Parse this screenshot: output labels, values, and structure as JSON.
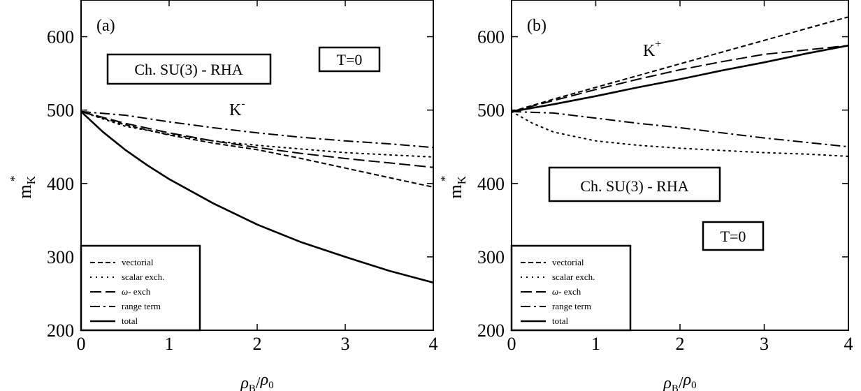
{
  "chart_data": [
    {
      "type": "line",
      "panel_label": "(a)",
      "xlabel": "ρB/ρ0",
      "ylabel": "m*K",
      "xlim": [
        0,
        4
      ],
      "ylim": [
        200,
        650
      ],
      "xticks": [
        0,
        1,
        2,
        3,
        4
      ],
      "yticks": [
        200,
        300,
        400,
        500,
        600
      ],
      "annotations": [
        "Ch. SU(3) - RHA",
        "T=0",
        "K-"
      ],
      "legend": {
        "placement": "bottom-left",
        "entries": [
          "vectorial",
          "scalar exch.",
          "ω- exch",
          "range term",
          "total"
        ]
      },
      "series": [
        {
          "name": "vectorial",
          "style": "short-dash",
          "x": [
            0,
            0.5,
            1,
            1.5,
            2,
            2.5,
            3,
            3.5,
            4
          ],
          "y": [
            498,
            480,
            466,
            455,
            446,
            434,
            421,
            408,
            395
          ]
        },
        {
          "name": "scalar exch.",
          "style": "dotted",
          "x": [
            0,
            0.5,
            1,
            1.5,
            2,
            2.5,
            3,
            3.5,
            4
          ],
          "y": [
            498,
            478,
            467,
            458,
            452,
            447,
            442,
            439,
            436
          ]
        },
        {
          "name": "ω- exch",
          "style": "long-dash",
          "x": [
            0,
            0.5,
            1,
            1.5,
            2,
            2.5,
            3,
            3.5,
            4
          ],
          "y": [
            498,
            482,
            469,
            458,
            449,
            441,
            434,
            428,
            422
          ]
        },
        {
          "name": "range term",
          "style": "dash-dot",
          "x": [
            0,
            0.5,
            1,
            1.5,
            2,
            2.5,
            3,
            3.5,
            4
          ],
          "y": [
            498,
            493,
            484,
            476,
            469,
            463,
            458,
            454,
            449
          ]
        },
        {
          "name": "total",
          "style": "solid",
          "x": [
            0,
            0.25,
            0.5,
            0.75,
            1,
            1.5,
            2,
            2.5,
            3,
            3.5,
            4
          ],
          "y": [
            498,
            470,
            446,
            425,
            406,
            373,
            344,
            320,
            300,
            281,
            265
          ]
        }
      ]
    },
    {
      "type": "line",
      "panel_label": "(b)",
      "xlabel": "ρB/ρ0",
      "ylabel": "m*K",
      "xlim": [
        0,
        4
      ],
      "ylim": [
        200,
        650
      ],
      "xticks": [
        0,
        1,
        2,
        3,
        4
      ],
      "yticks": [
        200,
        300,
        400,
        500,
        600
      ],
      "annotations": [
        "Ch. SU(3) - RHA",
        "T=0",
        "K+"
      ],
      "legend": {
        "placement": "bottom-left",
        "entries": [
          "vectorial",
          "scalar exch.",
          "ω- exch",
          "range term",
          "total"
        ]
      },
      "series": [
        {
          "name": "vectorial",
          "style": "short-dash",
          "x": [
            0,
            0.5,
            1,
            1.5,
            2,
            2.5,
            3,
            3.5,
            4
          ],
          "y": [
            498,
            515,
            531,
            547,
            563,
            579,
            595,
            611,
            627
          ]
        },
        {
          "name": "scalar exch.",
          "style": "dotted",
          "x": [
            0,
            0.25,
            0.5,
            1,
            1.5,
            2,
            2.5,
            3,
            3.5,
            4
          ],
          "y": [
            498,
            482,
            470,
            458,
            452,
            448,
            445,
            442,
            440,
            437
          ]
        },
        {
          "name": "ω- exch",
          "style": "long-dash",
          "x": [
            0,
            0.5,
            1,
            1.5,
            2,
            2.5,
            3,
            3.5,
            4
          ],
          "y": [
            498,
            513,
            528,
            542,
            555,
            566,
            576,
            582,
            588
          ]
        },
        {
          "name": "range term",
          "style": "dash-dot",
          "x": [
            0,
            0.5,
            1,
            1.5,
            2,
            2.5,
            3,
            3.5,
            4
          ],
          "y": [
            498,
            496,
            489,
            482,
            476,
            469,
            462,
            456,
            450
          ]
        },
        {
          "name": "total",
          "style": "solid",
          "x": [
            0,
            0.5,
            1,
            1.5,
            2,
            2.5,
            3,
            3.5,
            4
          ],
          "y": [
            498,
            508,
            519,
            531,
            542,
            554,
            565,
            577,
            588
          ]
        }
      ]
    }
  ]
}
